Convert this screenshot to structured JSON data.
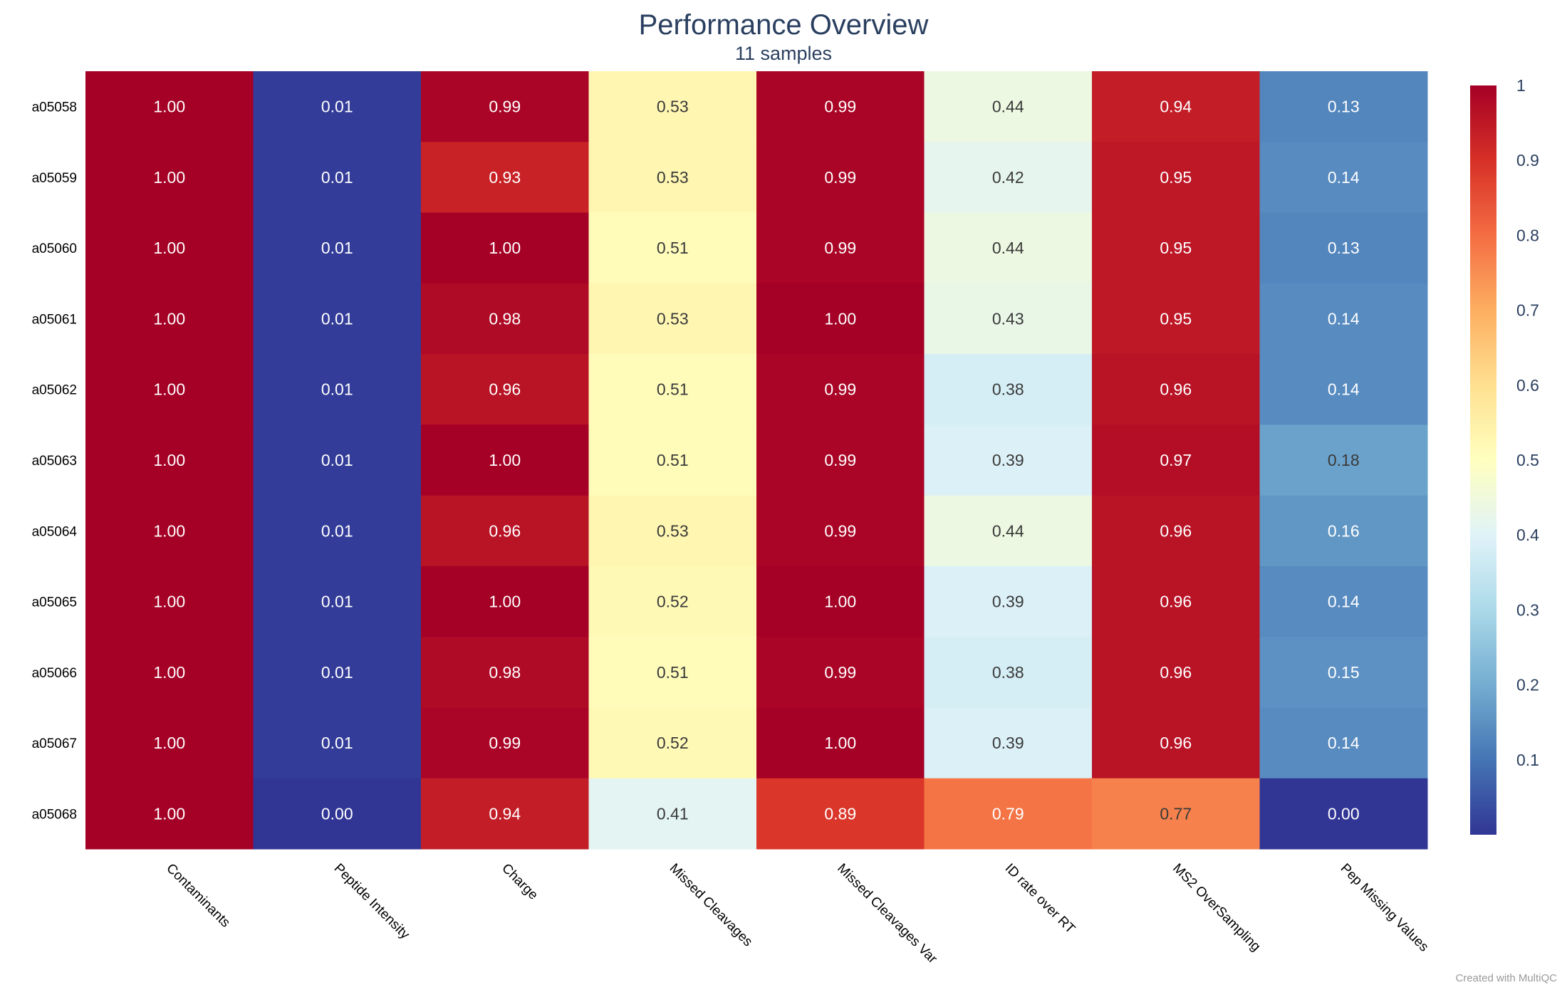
{
  "chart_data": {
    "type": "heatmap",
    "title": "Performance Overview",
    "subtitle": "11 samples",
    "columns": [
      "Contaminants",
      "Peptide Intensity",
      "Charge",
      "Missed Cleavages",
      "Missed Cleavages Var",
      "ID rate over RT",
      "MS2 OverSampling",
      "Pep Missing Values"
    ],
    "rows": [
      "a05058",
      "a05059",
      "a05060",
      "a05061",
      "a05062",
      "a05063",
      "a05064",
      "a05065",
      "a05066",
      "a05067",
      "a05068"
    ],
    "values": [
      [
        1.0,
        0.01,
        0.99,
        0.53,
        0.99,
        0.44,
        0.94,
        0.13
      ],
      [
        1.0,
        0.01,
        0.93,
        0.53,
        0.99,
        0.42,
        0.95,
        0.14
      ],
      [
        1.0,
        0.01,
        1.0,
        0.51,
        0.99,
        0.44,
        0.95,
        0.13
      ],
      [
        1.0,
        0.01,
        0.98,
        0.53,
        1.0,
        0.43,
        0.95,
        0.14
      ],
      [
        1.0,
        0.01,
        0.96,
        0.51,
        0.99,
        0.38,
        0.96,
        0.14
      ],
      [
        1.0,
        0.01,
        1.0,
        0.51,
        0.99,
        0.39,
        0.97,
        0.18
      ],
      [
        1.0,
        0.01,
        0.96,
        0.53,
        0.99,
        0.44,
        0.96,
        0.16
      ],
      [
        1.0,
        0.01,
        1.0,
        0.52,
        1.0,
        0.39,
        0.96,
        0.14
      ],
      [
        1.0,
        0.01,
        0.98,
        0.51,
        0.99,
        0.38,
        0.96,
        0.15
      ],
      [
        1.0,
        0.01,
        0.99,
        0.52,
        1.0,
        0.39,
        0.96,
        0.14
      ],
      [
        1.0,
        0.0,
        0.94,
        0.41,
        0.89,
        0.79,
        0.77,
        0.0
      ]
    ],
    "colorscale": "RdYlBu reversed",
    "zlim": [
      0,
      1
    ],
    "colorbar_ticks": [
      "0.1",
      "0.2",
      "0.3",
      "0.4",
      "0.5",
      "0.6",
      "0.7",
      "0.8",
      "0.9",
      "1"
    ],
    "colorbar_tick_values": [
      0.1,
      0.2,
      0.3,
      0.4,
      0.5,
      0.6,
      0.7,
      0.8,
      0.9,
      1.0
    ],
    "value_format_decimals": 2
  },
  "footer": {
    "credit": "Created with MultiQC"
  },
  "colors": {
    "title": "#2a3f5f"
  }
}
